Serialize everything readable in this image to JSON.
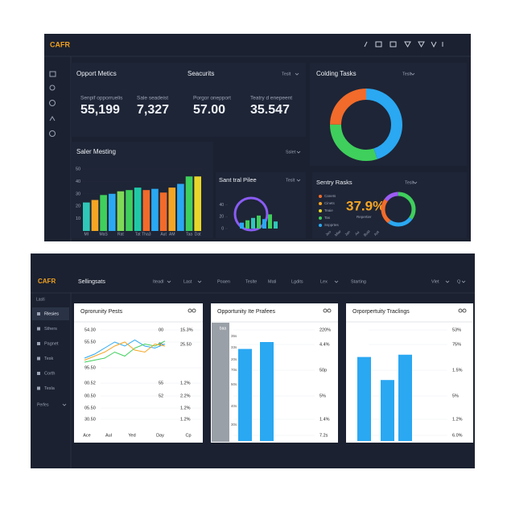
{
  "top": {
    "logo": "CAFR",
    "metrics": {
      "title": "Opport Metics",
      "items": [
        {
          "label": "Senpif opporruelis",
          "value": "55,199"
        },
        {
          "label": "Sale seadeist",
          "value": "7,327"
        },
        {
          "label": "Porgor onepport",
          "value": "57.00"
        },
        {
          "label": "Teatry d enepeent",
          "value": "35.547"
        }
      ]
    },
    "securities": {
      "title": "Seacurits",
      "dropdown": "Teslt"
    },
    "coding_tasks": {
      "title": "Colding Tasks",
      "dropdown": "Teslt",
      "donut": {
        "values": [
          45,
          30,
          25
        ],
        "colors": [
          "#2aa8f2",
          "#3fcf5c",
          "#f26b2a"
        ]
      }
    },
    "sales_meeting": {
      "title": "Saler Mesting",
      "dropdown": "Sslet",
      "ylim": [
        0,
        50
      ],
      "yticks": [
        10,
        20,
        30,
        40,
        50
      ],
      "categories": [
        "MI",
        null,
        "MaS",
        null,
        "Rat",
        null,
        "Tat",
        "Tha3",
        null,
        "Aut",
        "AM",
        null,
        "Taa",
        "Dat"
      ],
      "values": [
        23,
        25,
        29,
        30,
        32,
        33,
        35,
        33,
        34,
        31,
        35,
        38,
        44,
        44
      ],
      "colors": [
        "#2fc7b8",
        "#f5a524",
        "#3fcf5c",
        "#2aa8f2",
        "#7ed957",
        "#3fcf5c",
        "#20c9a6",
        "#f26b2a",
        "#2aa8f2",
        "#f26b2a",
        "#f5a524",
        "#2aa8f2",
        "#3fcf5c",
        "#e8d62a"
      ]
    },
    "central_pile": {
      "title": "Sant tral Pilee",
      "dropdown": "Teslt",
      "ylim": [
        0,
        60
      ],
      "yticks": [
        0,
        20,
        40
      ],
      "values": [
        10,
        14,
        18,
        22,
        16,
        24,
        12
      ],
      "colors": [
        "#2aa8f2",
        "#3fcf5c",
        "#2fc7b8",
        "#3fcf5c",
        "#2aa8f2",
        "#3fcf5c",
        "#2fc7b8"
      ]
    },
    "sentry_tasks": {
      "title": "Sentry Rasks",
      "dropdown": "Teslt",
      "legend": [
        {
          "label": "Canets",
          "color": "#f26b2a"
        },
        {
          "label": "Cinets",
          "color": "#f5a524"
        },
        {
          "label": "Teaie",
          "color": "#e8d62a"
        },
        {
          "label": "Tas",
          "color": "#3fcf5c"
        },
        {
          "label": "Sspprtes",
          "color": "#2aa8f2"
        }
      ],
      "big_value": "37.9%",
      "caption": "Repertier",
      "donut": {
        "values": [
          35,
          25,
          25,
          15
        ],
        "colors": [
          "#3fcf5c",
          "#2aa8f2",
          "#f26b2a",
          "#9b5cf5"
        ]
      },
      "months": [
        "Jeo",
        "Mlar",
        "Jan",
        "Ao",
        "Bust",
        "Aot"
      ]
    }
  },
  "bottom": {
    "logo": "CAFR",
    "nav": [
      "Sellingsats",
      "Iteadl",
      "Last",
      "Poaen",
      "Teslte",
      "Mati",
      "Lgdits",
      "Lex",
      "Starting",
      "Vlet",
      "Q"
    ],
    "sidebar": {
      "heading": "Lasti",
      "items": [
        "Rlesies",
        "Sthers",
        "Pagnet",
        "Tesk",
        "Corth",
        "Tesla"
      ],
      "footer": "Perfes"
    },
    "line_card": {
      "title": "Oprorunity Pests",
      "left_labels": [
        "54.30",
        "55.50",
        "95.50",
        "00.52",
        "00.50",
        "05.50",
        "30.50"
      ],
      "middle_labels": [
        "00",
        "95",
        "55",
        "52"
      ],
      "right_labels": [
        "15.3%",
        "25.50",
        "1.2%",
        "2.2%",
        "1.2%",
        "1.2%"
      ],
      "x_labels": [
        "Ace",
        "Aul",
        "Yed",
        "Day",
        "Cp"
      ],
      "ylim": [
        0,
        100
      ],
      "series": [
        {
          "color": "#2aa8f2",
          "values": [
            68,
            72,
            78,
            84,
            80,
            86,
            80,
            78,
            82
          ]
        },
        {
          "color": "#3fcf5c",
          "values": [
            64,
            66,
            68,
            74,
            70,
            78,
            82,
            80,
            85
          ]
        },
        {
          "color": "#f5a524",
          "values": [
            66,
            70,
            74,
            80,
            84,
            76,
            74,
            82,
            80
          ]
        }
      ]
    },
    "bar_card_1": {
      "title": "Opportunity Ite Prafees",
      "band_label": "baa",
      "left_labels": [
        "35s",
        "33s",
        "20s",
        "70s",
        "50s",
        "40s",
        "30s"
      ],
      "right_labels": [
        "220%",
        "4.4%",
        "50p",
        "5%",
        "1.4%",
        "7.2s"
      ],
      "ylim": [
        0,
        100
      ],
      "values": [
        80,
        86
      ],
      "color": "#2aa8f2"
    },
    "bar_card_2": {
      "title": "Orporpertuity Traclings",
      "right_labels": [
        "53%",
        "75%",
        "1.5%",
        "5%",
        "1.2%",
        "6.0%"
      ],
      "ylim": [
        0,
        100
      ],
      "values": [
        73,
        53,
        75
      ],
      "color": "#2aa8f2"
    }
  }
}
